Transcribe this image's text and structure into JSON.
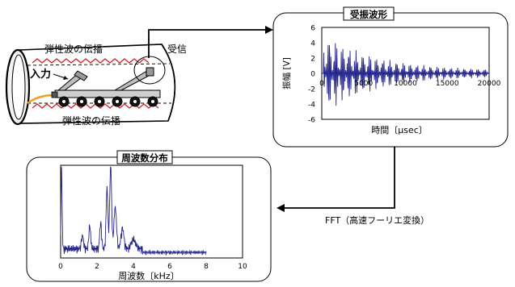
{
  "labels": {
    "propagation_top": "弾性波の伝播",
    "propagation_bottom": "弾性波の伝播",
    "input": "入力",
    "receive": "受信",
    "fft": "FFT（高速フーリエ変換）"
  },
  "waveform_panel": {
    "title": "受振波形",
    "ylabel": "振幅 [V]",
    "xlabel": "時間〔μsec〕",
    "yticks": [
      "6",
      "4",
      "2",
      "0",
      "-2",
      "-4",
      "-6"
    ],
    "xticks": [
      "0",
      "5000",
      "10000",
      "15000",
      "20000"
    ]
  },
  "spectrum_panel": {
    "title": "周波数分布",
    "xlabel": "周波数〔kHz〕",
    "xticks": [
      "0",
      "2",
      "4",
      "6",
      "8",
      "10"
    ]
  },
  "colors": {
    "signal": "#23238c",
    "wave": "#d22828",
    "cable": "#f0a020",
    "line": "#000000"
  }
}
